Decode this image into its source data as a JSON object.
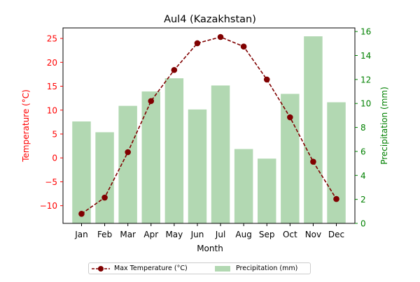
{
  "chart_data": {
    "type": "bar+line",
    "title": "Aul4 (Kazakhstan)",
    "xlabel": "Month",
    "categories": [
      "Jan",
      "Feb",
      "Mar",
      "Apr",
      "May",
      "Jun",
      "Jul",
      "Aug",
      "Sep",
      "Oct",
      "Nov",
      "Dec"
    ],
    "temperature": {
      "name": "Max Temperature (°C)",
      "axis_label": "Temperature (°C)",
      "color": "#800000",
      "axis_color": "#ff0000",
      "values": [
        -11.7,
        -8.3,
        1.2,
        11.9,
        18.4,
        24.0,
        25.3,
        23.3,
        16.4,
        8.5,
        -0.8,
        -8.6
      ],
      "ylim": [
        -13.7,
        27.2
      ],
      "ticks": [
        -10,
        -5,
        0,
        5,
        10,
        15,
        20,
        25
      ]
    },
    "precipitation": {
      "name": "Precipitation (mm)",
      "axis_label": "Precipitation (mm)",
      "color": "#b2d8b2",
      "axis_color": "#008000",
      "values": [
        8.5,
        7.6,
        9.8,
        11.0,
        12.1,
        9.5,
        11.5,
        6.2,
        5.4,
        10.8,
        15.6,
        10.1
      ],
      "ylim": [
        0,
        16.3
      ],
      "ticks": [
        0,
        2,
        4,
        6,
        8,
        10,
        12,
        14,
        16
      ]
    },
    "legend_position": "bottom-center"
  }
}
